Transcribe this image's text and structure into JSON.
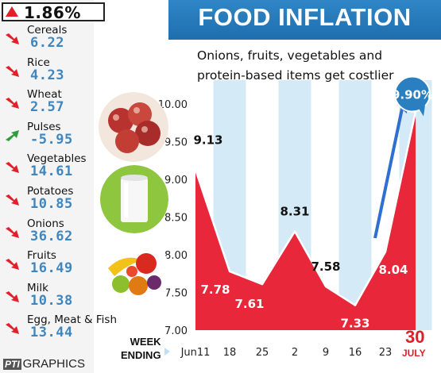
{
  "headline": {
    "value": "1.86%",
    "direction": "up"
  },
  "items": [
    {
      "name": "Cereals",
      "value": "6.22",
      "direction": "up"
    },
    {
      "name": "Rice",
      "value": "4.23",
      "direction": "up"
    },
    {
      "name": "Wheat",
      "value": "2.57",
      "direction": "up"
    },
    {
      "name": "Pulses",
      "value": "-5.95",
      "direction": "down"
    },
    {
      "name": "Vegetables",
      "value": "14.61",
      "direction": "up"
    },
    {
      "name": "Potatoes",
      "value": "10.85",
      "direction": "up"
    },
    {
      "name": "Onions",
      "value": "36.62",
      "direction": "up"
    },
    {
      "name": "Fruits",
      "value": "16.49",
      "direction": "up"
    },
    {
      "name": "Milk",
      "value": "10.38",
      "direction": "up"
    },
    {
      "name": "Egg, Meat & Fish",
      "value": "13.44",
      "direction": "up"
    }
  ],
  "colors": {
    "up": "#e0202a",
    "down": "#2e9e3a",
    "value_text": "#3f86bf",
    "banner": "#2a7fc0",
    "area": "#e8283a"
  },
  "icons": {
    "up": "up-arrow-icon",
    "down": "down-arrow-icon"
  },
  "footer": {
    "week_ending_line1": "WEEK",
    "week_ending_line2": "ENDING",
    "date_day": "30",
    "date_month": "JULY",
    "credit_pti": "PTI",
    "credit_text": "GRAPHICS"
  },
  "chart_data": {
    "type": "area",
    "title": "FOOD INFLATION",
    "subtitle_lines": [
      "Onions, fruits, vegetables and",
      "protein-based items get costlier"
    ],
    "categories": [
      "Jun11",
      "18",
      "25",
      "2",
      "9",
      "16",
      "23",
      "30"
    ],
    "values": [
      9.13,
      7.78,
      7.61,
      8.31,
      7.58,
      7.33,
      8.04,
      9.9
    ],
    "data_labels": [
      "9.13",
      "7.78",
      "7.61",
      "8.31",
      "7.58",
      "7.33",
      "8.04",
      "9.90%"
    ],
    "yticks": [
      "7.00",
      "7.50",
      "8.00",
      "8.50",
      "9.00",
      "9.50",
      "10.00"
    ],
    "ylim": [
      7.0,
      10.0
    ],
    "xlabel": "",
    "ylabel": "",
    "grid": false,
    "alternating_columns": true
  }
}
